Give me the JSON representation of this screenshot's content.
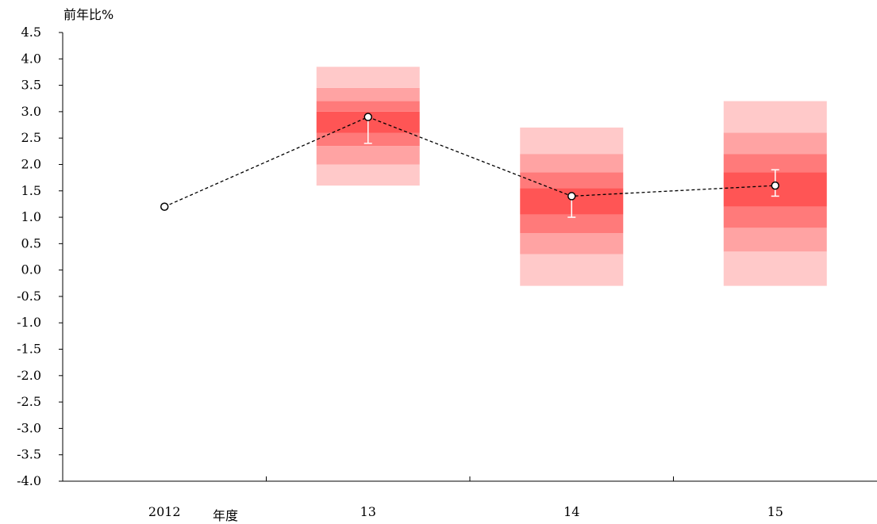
{
  "chart_data": {
    "type": "line",
    "ylabel": "前年比%",
    "xlabel": "年度",
    "ylim": [
      -4.0,
      4.5
    ],
    "ystep": 0.5,
    "ytick_labels": [
      "4.5",
      "4.0",
      "3.5",
      "3.0",
      "2.5",
      "2.0",
      "1.5",
      "1.0",
      "0.5",
      "0.0",
      "-0.5",
      "-1.0",
      "-1.5",
      "-2.0",
      "-2.5",
      "-3.0",
      "-3.5",
      "-4.0"
    ],
    "categories": [
      "2012",
      "13",
      "14",
      "15"
    ],
    "series": [
      {
        "values": [
          1.2,
          2.9,
          1.4,
          1.6
        ]
      }
    ],
    "error_bars": [
      null,
      {
        "low": 2.4,
        "high": 2.9
      },
      {
        "low": 1.0,
        "high": 1.4
      },
      {
        "low": 1.4,
        "high": 1.9
      }
    ],
    "fan_bands": [
      null,
      [
        1.6,
        2.0,
        2.35,
        2.6,
        3.0,
        3.2,
        3.45,
        3.85
      ],
      [
        -0.3,
        0.3,
        0.7,
        1.05,
        1.55,
        1.85,
        2.2,
        2.7
      ],
      [
        -0.3,
        0.35,
        0.8,
        1.2,
        1.85,
        2.2,
        2.6,
        3.2
      ]
    ],
    "grid": false,
    "colors": {
      "band_outer": "#ffc9c9",
      "band_mid": "#ffa3a3",
      "band_inner": "#ff7a7a",
      "band_center": "#ff5555",
      "line": "#000000",
      "marker_fill": "#ffffff",
      "error_bar": "#ffffff"
    }
  }
}
